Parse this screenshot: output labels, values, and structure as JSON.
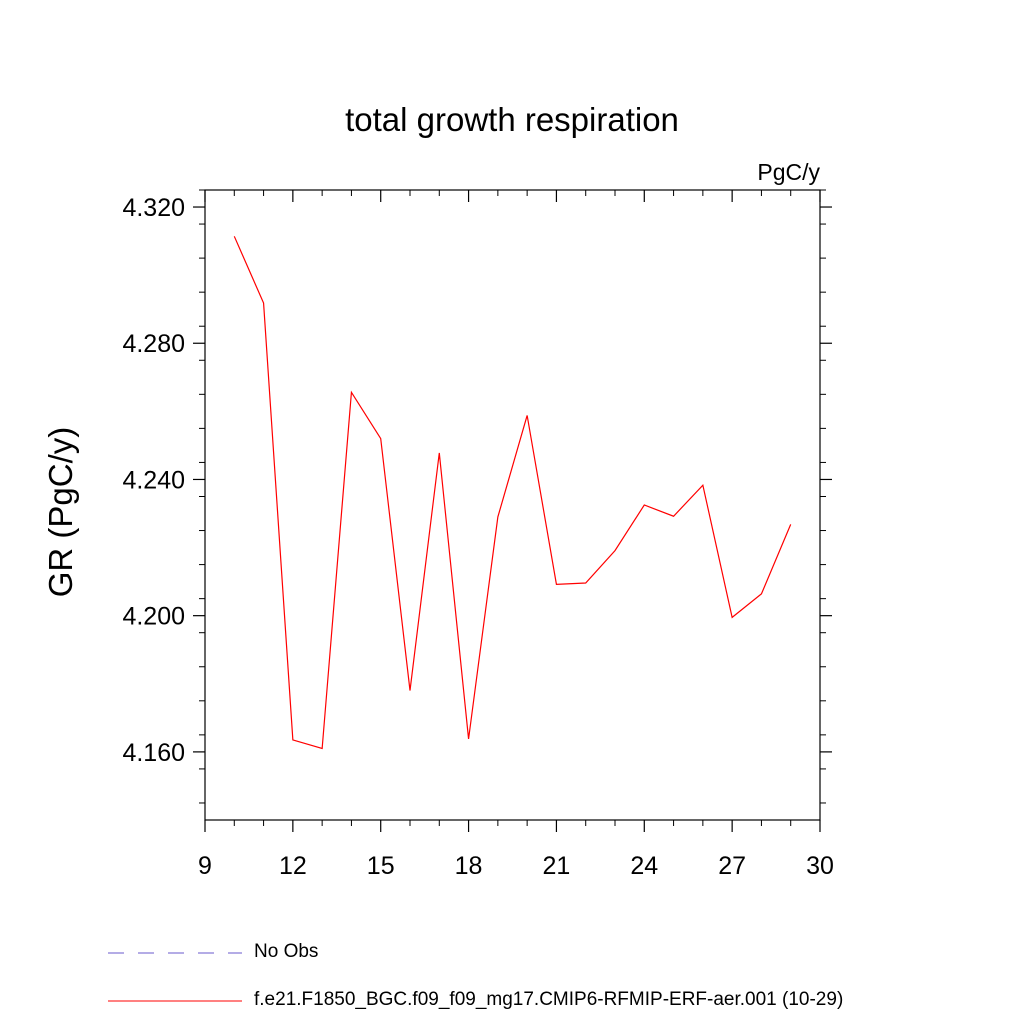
{
  "chart_data": {
    "type": "line",
    "title": "total growth respiration",
    "units_label": "PgC/y",
    "xlabel": "",
    "ylabel": "GR  (PgC/y)",
    "xlim": [
      9,
      30
    ],
    "ylim": [
      4.14,
      4.325
    ],
    "x_ticks": [
      9,
      12,
      15,
      18,
      21,
      24,
      27,
      30
    ],
    "y_ticks": [
      4.16,
      4.2,
      4.24,
      4.28,
      4.32
    ],
    "y_tick_labels": [
      "4.160",
      "4.200",
      "4.240",
      "4.280",
      "4.320"
    ],
    "series": [
      {
        "name": "f.e21.F1850_BGC.f09_f09_mg17.CMIP6-RFMIP-ERF-aer.001 (10-29)",
        "color": "#ff0000",
        "dash": "solid",
        "x": [
          10,
          11,
          12,
          13,
          14,
          15,
          16,
          17,
          18,
          19,
          20,
          21,
          22,
          23,
          24,
          25,
          26,
          27,
          28,
          29
        ],
        "y": [
          4.3114,
          4.2918,
          4.1635,
          4.161,
          4.2656,
          4.252,
          4.178,
          4.2478,
          4.1638,
          4.229,
          4.2588,
          4.2092,
          4.2096,
          4.2191,
          4.2325,
          4.2292,
          4.2383,
          4.1995,
          4.2064,
          4.2268
        ]
      }
    ],
    "legend": [
      {
        "label": "No Obs",
        "color": "#6a5acd",
        "dash": "dashed"
      },
      {
        "label": "f.e21.F1850_BGC.f09_f09_mg17.CMIP6-RFMIP-ERF-aer.001 (10-29)",
        "color": "#ff0000",
        "dash": "solid"
      }
    ]
  }
}
